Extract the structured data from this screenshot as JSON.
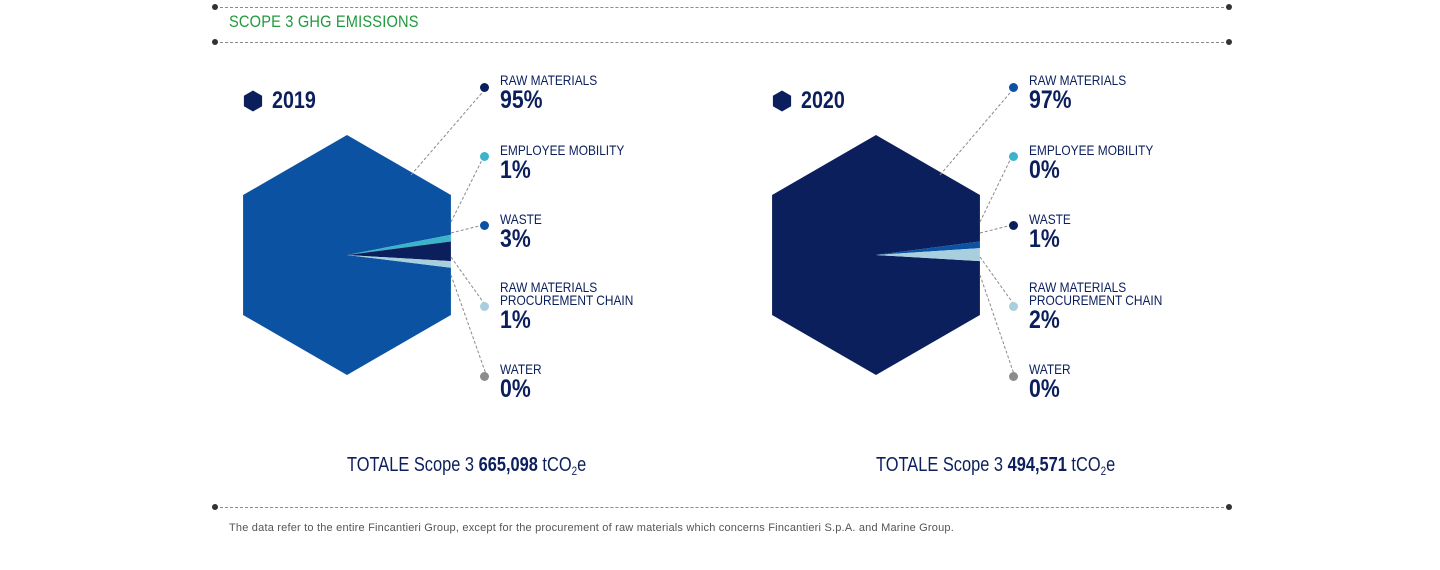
{
  "header": {
    "title": "SCOPE 3 GHG EMISSIONS"
  },
  "colors": {
    "raw_materials_2019": "#0c52a3",
    "raw_materials_2020": "#0b1f5c",
    "employee_mobility": "#3bb3c8",
    "waste_2019": "#0b1f5c",
    "waste_2020": "#0c52a3",
    "procurement_chain": "#a7cfdd",
    "water": "#8c8c8c",
    "text": "#0b1f5c",
    "title": "#1f9a3c"
  },
  "chart_data": [
    {
      "type": "pie",
      "shape": "hexagon",
      "title": "2019",
      "categories": [
        "RAW MATERIALS",
        "EMPLOYEE MOBILITY",
        "WASTE",
        "RAW MATERIALS\nPROCUREMENT CHAIN",
        "WATER"
      ],
      "labels": [
        "95%",
        "1%",
        "3%",
        "1%",
        "0%"
      ],
      "values": [
        95,
        1,
        3,
        1,
        0
      ],
      "total_prefix": "TOTALE Scope 3",
      "total_value": "665,098",
      "total_unit": "tCO",
      "total_unit_sub": "2",
      "total_unit_suffix": "e"
    },
    {
      "type": "pie",
      "shape": "hexagon",
      "title": "2020",
      "categories": [
        "RAW MATERIALS",
        "EMPLOYEE MOBILITY",
        "WASTE",
        "RAW MATERIALS\nPROCUREMENT CHAIN",
        "WATER"
      ],
      "labels": [
        "97%",
        "0%",
        "1%",
        "2%",
        "0%"
      ],
      "values": [
        97,
        0,
        1,
        2,
        0
      ],
      "total_prefix": "TOTALE Scope 3",
      "total_value": "494,571",
      "total_unit": "tCO",
      "total_unit_sub": "2",
      "total_unit_suffix": "e"
    }
  ],
  "footnote": "The data refer to the entire Fincantieri Group, except for the procurement of raw materials which concerns Fincantieri S.p.A. and Marine Group."
}
